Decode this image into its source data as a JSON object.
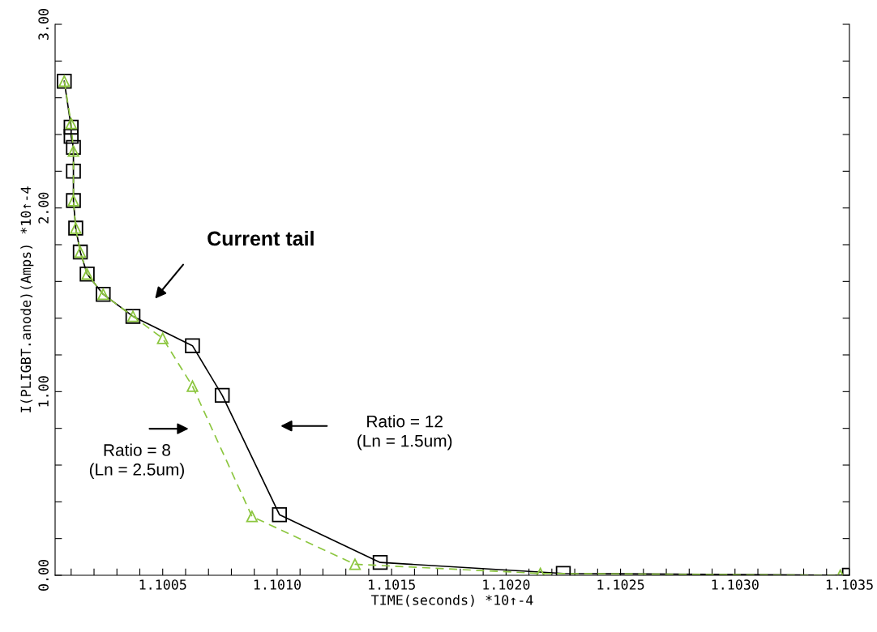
{
  "chart_data": {
    "type": "line",
    "xlabel": "TIME(seconds) *10↑-4",
    "ylabel": "I(PLIGBT.anode)(Amps) *10↑-4",
    "annotations": [
      "Current tail",
      "Ratio = 12\n(Ln = 1.5um)",
      "Ratio = 8\n(Ln = 2.5um)"
    ],
    "xlim": [
      1.10003,
      1.1035
    ],
    "ylim": [
      0,
      3.0
    ],
    "xticks": [
      {
        "value": 1.1001,
        "label": null
      },
      {
        "value": 1.1002,
        "label": null
      },
      {
        "value": 1.1003,
        "label": null
      },
      {
        "value": 1.1004,
        "label": null
      },
      {
        "value": 1.1005,
        "label": "1.1005"
      },
      {
        "value": 1.1006,
        "label": null
      },
      {
        "value": 1.1007,
        "label": null
      },
      {
        "value": 1.1008,
        "label": null
      },
      {
        "value": 1.1009,
        "label": null
      },
      {
        "value": 1.101,
        "label": "1.1010"
      },
      {
        "value": 1.1011,
        "label": null
      },
      {
        "value": 1.1012,
        "label": null
      },
      {
        "value": 1.1013,
        "label": null
      },
      {
        "value": 1.1014,
        "label": null
      },
      {
        "value": 1.1015,
        "label": "1.1015"
      },
      {
        "value": 1.1016,
        "label": null
      },
      {
        "value": 1.1017,
        "label": null
      },
      {
        "value": 1.1018,
        "label": null
      },
      {
        "value": 1.1019,
        "label": null
      },
      {
        "value": 1.102,
        "label": "1.1020"
      },
      {
        "value": 1.1021,
        "label": null
      },
      {
        "value": 1.1022,
        "label": null
      },
      {
        "value": 1.1023,
        "label": null
      },
      {
        "value": 1.1024,
        "label": null
      },
      {
        "value": 1.1025,
        "label": "1.1025"
      },
      {
        "value": 1.1026,
        "label": null
      },
      {
        "value": 1.1027,
        "label": null
      },
      {
        "value": 1.1028,
        "label": null
      },
      {
        "value": 1.1029,
        "label": null
      },
      {
        "value": 1.103,
        "label": "1.1030"
      },
      {
        "value": 1.1031,
        "label": null
      },
      {
        "value": 1.1032,
        "label": null
      },
      {
        "value": 1.1033,
        "label": null
      },
      {
        "value": 1.1034,
        "label": null
      },
      {
        "value": 1.1035,
        "label": "1.1035"
      }
    ],
    "yticks": [
      {
        "value": 0,
        "label": "0.00"
      },
      {
        "value": 0.2,
        "label": null
      },
      {
        "value": 0.4,
        "label": null
      },
      {
        "value": 0.6,
        "label": null
      },
      {
        "value": 0.8,
        "label": null
      },
      {
        "value": 1.0,
        "label": "1.00"
      },
      {
        "value": 1.2,
        "label": null
      },
      {
        "value": 1.4,
        "label": null
      },
      {
        "value": 1.6,
        "label": null
      },
      {
        "value": 1.8,
        "label": null
      },
      {
        "value": 2.0,
        "label": "2.00"
      },
      {
        "value": 2.2,
        "label": null
      },
      {
        "value": 2.4,
        "label": null
      },
      {
        "value": 2.6,
        "label": null
      },
      {
        "value": 2.8,
        "label": null
      },
      {
        "value": 3.0,
        "label": "3.00"
      }
    ],
    "grid": false,
    "legend": false,
    "series": [
      {
        "color": "#000000",
        "marker": "square",
        "line_style": "solid",
        "x": [
          1.10007,
          1.1001,
          1.1001,
          1.10011,
          1.10011,
          1.10011,
          1.10012,
          1.10014,
          1.10017,
          1.10024,
          1.10037,
          1.10063,
          1.10076,
          1.10101,
          1.10145,
          1.10225,
          1.1035
        ],
        "values": [
          2.69,
          2.44,
          2.39,
          2.33,
          2.2,
          2.04,
          1.89,
          1.76,
          1.64,
          1.53,
          1.41,
          1.25,
          0.98,
          0.33,
          0.07,
          0.01,
          0.0
        ]
      },
      {
        "color": "#8cc63f",
        "marker": "triangle",
        "line_style": "dashed",
        "x": [
          1.10007,
          1.1001,
          1.10011,
          1.10011,
          1.10012,
          1.10014,
          1.10017,
          1.10024,
          1.10037,
          1.1005,
          1.10063,
          1.10089,
          1.10134,
          1.10215,
          1.10346
        ],
        "values": [
          2.69,
          2.46,
          2.31,
          2.04,
          1.89,
          1.76,
          1.64,
          1.53,
          1.41,
          1.29,
          1.03,
          0.32,
          0.06,
          0.01,
          0.0
        ]
      }
    ]
  }
}
